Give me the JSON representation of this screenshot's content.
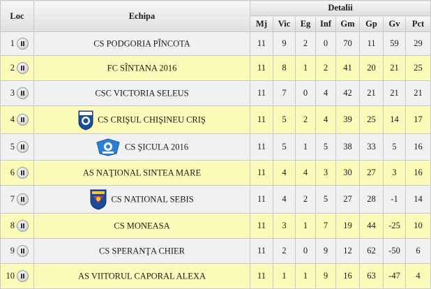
{
  "header": {
    "loc": "Loc",
    "echipa": "Echipa",
    "detalii": "Detalii",
    "columns": [
      "Mj",
      "Vic",
      "Eg",
      "Inf",
      "Gm",
      "Gp",
      "Gv",
      "Pct"
    ]
  },
  "rows": [
    {
      "pos": "1",
      "team": "CS PODGORIA PÎNCOTA",
      "mj": "11",
      "vic": "9",
      "eg": "2",
      "inf": "0",
      "gm": "70",
      "gp": "11",
      "gv": "59",
      "pct": "29"
    },
    {
      "pos": "2",
      "team": "FC SÎNTANA 2016",
      "mj": "11",
      "vic": "8",
      "eg": "1",
      "inf": "2",
      "gm": "41",
      "gp": "20",
      "gv": "21",
      "pct": "25"
    },
    {
      "pos": "3",
      "team": "CSC VICTORIA SELEUS",
      "mj": "11",
      "vic": "7",
      "eg": "0",
      "inf": "4",
      "gm": "42",
      "gp": "21",
      "gv": "21",
      "pct": "21"
    },
    {
      "pos": "4",
      "team": "CS CRIŞUL CHIŞINEU CRIŞ",
      "mj": "11",
      "vic": "5",
      "eg": "2",
      "inf": "4",
      "gm": "39",
      "gp": "25",
      "gv": "14",
      "pct": "17",
      "crest": "crisul-crest-icon"
    },
    {
      "pos": "5",
      "team": "CS ŞICULA 2016",
      "mj": "11",
      "vic": "5",
      "eg": "1",
      "inf": "5",
      "gm": "38",
      "gp": "33",
      "gv": "5",
      "pct": "16",
      "crest": "sicula-crest-icon"
    },
    {
      "pos": "6",
      "team": "AS NAŢIONAL SINTEA MARE",
      "mj": "11",
      "vic": "4",
      "eg": "4",
      "inf": "3",
      "gm": "30",
      "gp": "27",
      "gv": "3",
      "pct": "16"
    },
    {
      "pos": "7",
      "team": "CS NATIONAL SEBIS",
      "mj": "11",
      "vic": "4",
      "eg": "2",
      "inf": "5",
      "gm": "27",
      "gp": "28",
      "gv": "-1",
      "pct": "14",
      "crest": "national-sebis-crest-icon"
    },
    {
      "pos": "8",
      "team": "CS MONEASA",
      "mj": "11",
      "vic": "3",
      "eg": "1",
      "inf": "7",
      "gm": "19",
      "gp": "44",
      "gv": "-25",
      "pct": "10"
    },
    {
      "pos": "9",
      "team": "CS SPERANŢA CHIER",
      "mj": "11",
      "vic": "2",
      "eg": "0",
      "inf": "9",
      "gm": "12",
      "gp": "62",
      "gv": "-50",
      "pct": "6"
    },
    {
      "pos": "10",
      "team": "AS VIITORUL CAPORAL ALEXA",
      "mj": "11",
      "vic": "1",
      "eg": "1",
      "inf": "9",
      "gm": "16",
      "gp": "63",
      "gv": "-47",
      "pct": "4"
    }
  ],
  "icons": {
    "row_button": "pause-icon"
  },
  "colors": {
    "odd_row": "#f1f1f1",
    "even_row": "#fdfbb9",
    "border": "#c9c9c9"
  }
}
